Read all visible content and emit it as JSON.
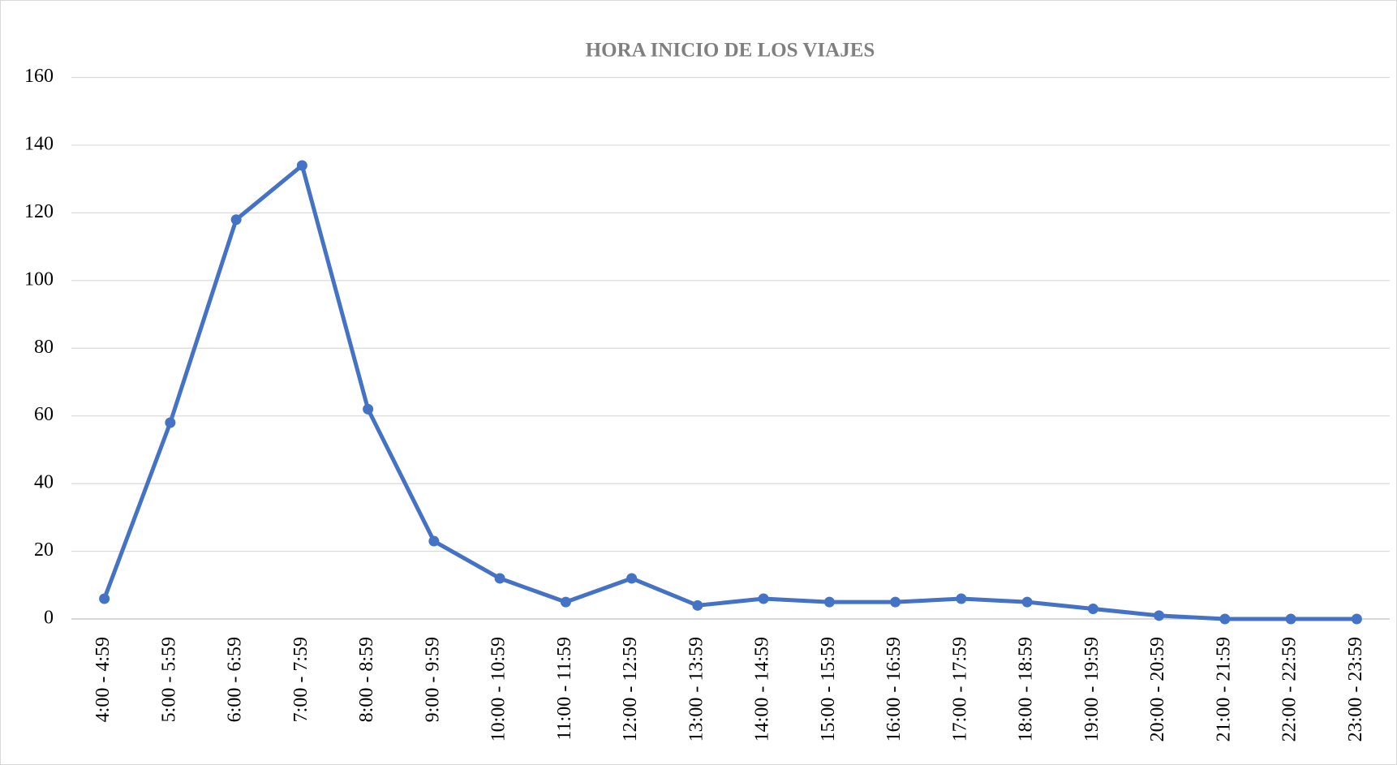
{
  "chart_data": {
    "type": "line",
    "title": "HORA INICIO DE LOS VIAJES",
    "categories": [
      "4:00 - 4:59",
      "5:00 - 5:59",
      "6:00 - 6:59",
      "7:00 - 7:59",
      "8:00 - 8:59",
      "9:00 - 9:59",
      "10:00 - 10:59",
      "11:00 - 11:59",
      "12:00 - 12:59",
      "13:00 - 13:59",
      "14:00 - 14:59",
      "15:00 - 15:59",
      "16:00 - 16:59",
      "17:00 - 17:59",
      "18:00 - 18:59",
      "19:00 - 19:59",
      "20:00 - 20:59",
      "21:00 - 21:59",
      "22:00 - 22:59",
      "23:00 - 23:59"
    ],
    "values": [
      6,
      58,
      118,
      134,
      62,
      23,
      12,
      5,
      12,
      4,
      6,
      5,
      5,
      6,
      5,
      3,
      1,
      0,
      0,
      0
    ],
    "color": "#4472c4",
    "ylim": [
      0,
      160
    ],
    "yticks": [
      0,
      20,
      40,
      60,
      80,
      100,
      120,
      140,
      160
    ],
    "grid": true
  }
}
